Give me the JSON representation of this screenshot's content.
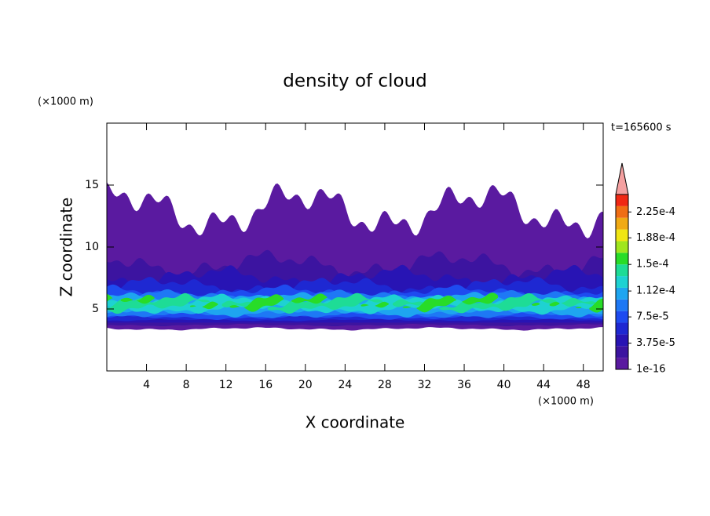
{
  "chart_data": {
    "type": "contour",
    "title": "density of cloud",
    "xlabel": "X coordinate",
    "ylabel": "Z coordinate",
    "x_unit": "(×1000 m)",
    "y_unit": "(×1000 m)",
    "annotation": "t=165600 s",
    "xlim": [
      0,
      50
    ],
    "xticks": [
      4,
      8,
      12,
      16,
      20,
      24,
      28,
      32,
      36,
      40,
      44,
      48
    ],
    "ylim": [
      0,
      20
    ],
    "yticks": [
      5,
      10,
      15
    ],
    "colorbar": {
      "lim": [
        1e-16,
        0.00025
      ],
      "colors": [
        "#5a1aa0",
        "#3c14a0",
        "#2814b4",
        "#1e28d2",
        "#1e4bf0",
        "#1e78f5",
        "#1ea5f0",
        "#1ed2d2",
        "#1edc96",
        "#28dc28",
        "#a0e61e",
        "#f0e614",
        "#f0aa14",
        "#f06e14",
        "#f02814"
      ],
      "extend_color": "#f4a0a0",
      "ticks": [
        {
          "value": 1e-16,
          "label": "1e-16"
        },
        {
          "value": 3.75e-05,
          "label": "3.75e-5"
        },
        {
          "value": 7.5e-05,
          "label": "7.5e-5"
        },
        {
          "value": 0.000112,
          "label": "1.12e-4"
        },
        {
          "value": 0.00015,
          "label": "1.5e-4"
        },
        {
          "value": 0.000188,
          "label": "1.88e-4"
        },
        {
          "value": 0.000225,
          "label": "2.25e-4"
        }
      ]
    }
  }
}
